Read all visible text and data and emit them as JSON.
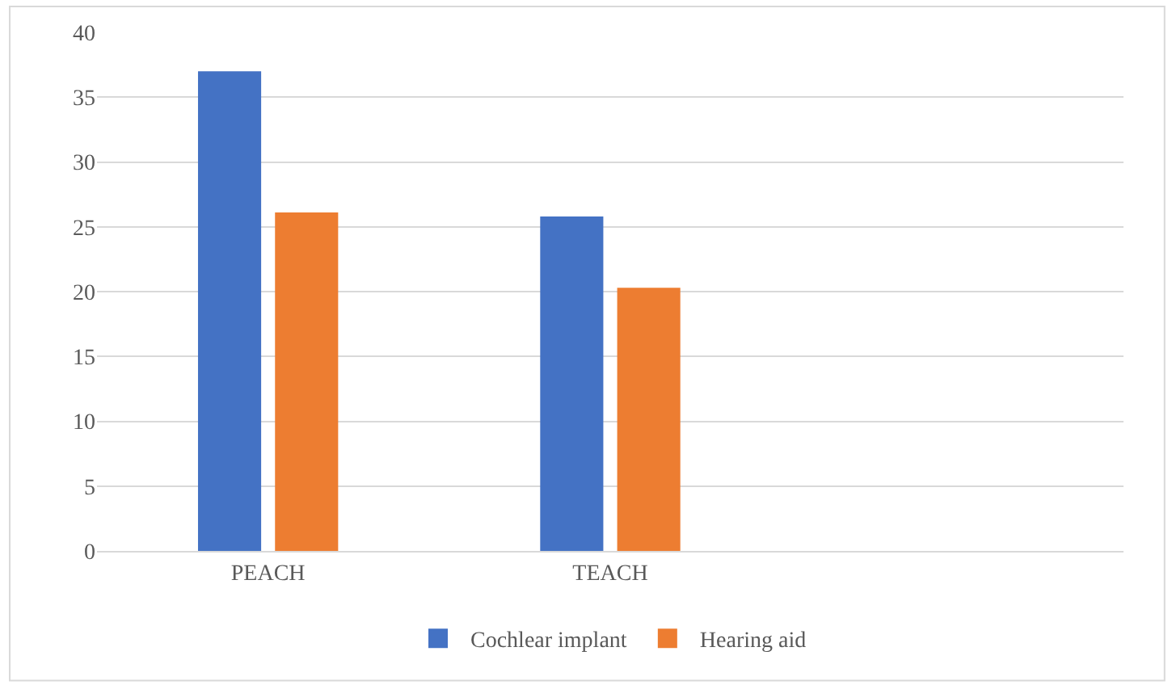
{
  "chart_data": {
    "type": "bar",
    "categories": [
      "PEACH",
      "TEACH",
      null
    ],
    "series": [
      {
        "name": "Cochlear implant",
        "color": "#4472c4",
        "values": [
          37.0,
          25.8,
          null
        ]
      },
      {
        "name": "Hearing aid",
        "color": "#ed7d31",
        "values": [
          26.1,
          20.3,
          null
        ]
      }
    ],
    "ylim": [
      0,
      40
    ],
    "yticks": [
      0,
      5,
      10,
      15,
      20,
      25,
      30,
      35,
      40
    ],
    "grid": "y",
    "legend": "bottom"
  }
}
